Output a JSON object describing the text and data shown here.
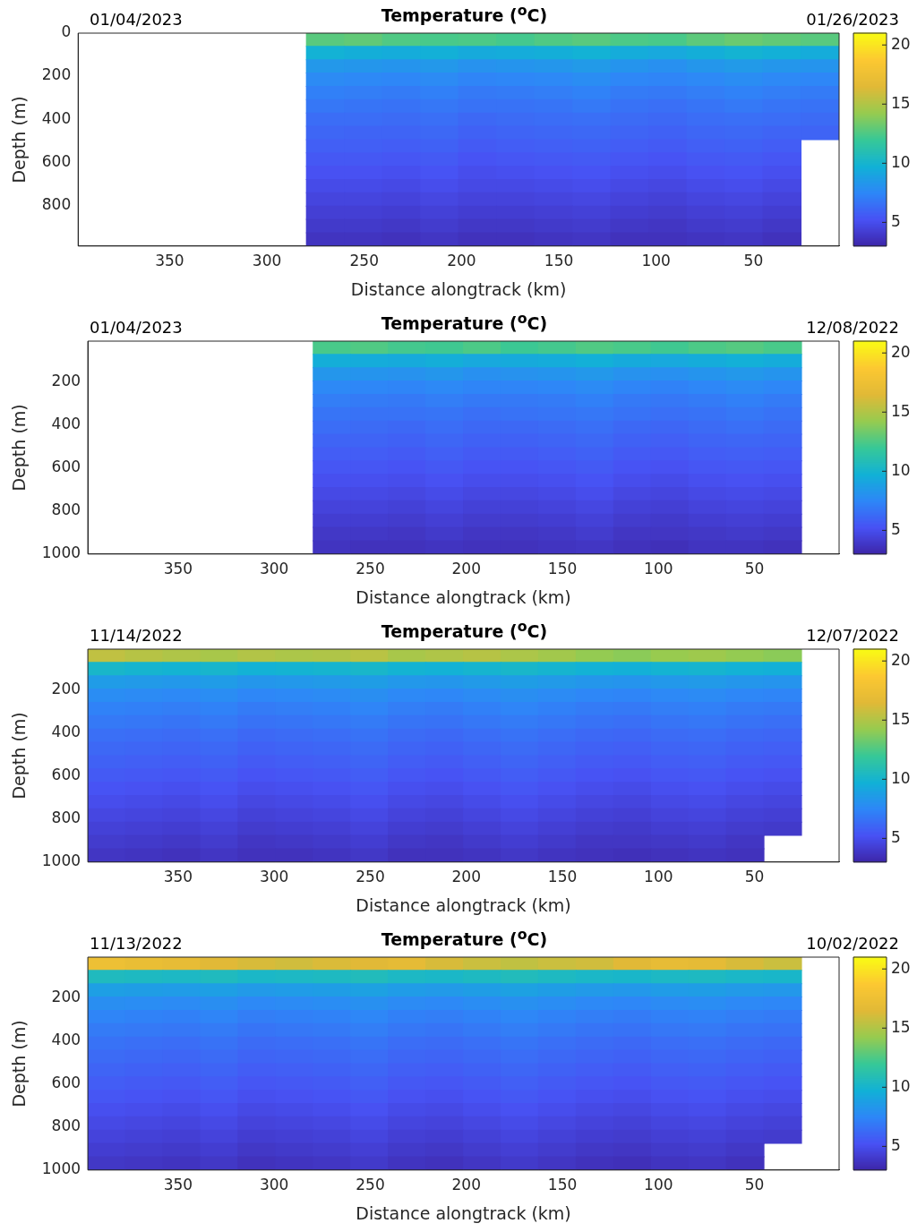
{
  "chart_data": [
    {
      "type": "heatmap",
      "title": "Temperature ($^{o}$C)",
      "xlabel": "Distance alongtrack (km)",
      "ylabel": "Depth (m)",
      "annotations": [
        "01/04/2023",
        "01/26/2023"
      ],
      "xlim": [
        397,
        6
      ],
      "xticks": [
        350,
        300,
        250,
        200,
        150,
        100,
        50
      ],
      "ylim": [
        990,
        0
      ],
      "yticks": [
        0,
        200,
        400,
        600,
        800
      ],
      "clim": [
        3,
        21
      ],
      "cticks": [
        5,
        10,
        15,
        20
      ],
      "cells": [
        [
          null,
          null,
          null,
          null,
          null,
          null,
          12.8,
          13.0,
          12.6,
          12.4,
          12.5,
          12.3,
          12.6,
          12.8,
          12.5,
          12.4,
          12.9,
          13.2,
          13.0,
          12.8
        ],
        [
          null,
          null,
          null,
          null,
          null,
          null,
          9.8,
          9.6,
          9.5,
          9.7,
          9.4,
          9.5,
          9.6,
          9.8,
          9.5,
          9.3,
          9.6,
          9.9,
          9.7,
          9.5
        ],
        [
          null,
          null,
          null,
          null,
          null,
          null,
          8.4,
          8.3,
          8.2,
          8.4,
          8.1,
          8.2,
          8.3,
          8.5,
          8.2,
          8.0,
          8.3,
          8.5,
          8.3,
          8.2
        ],
        [
          null,
          null,
          null,
          null,
          null,
          null,
          7.7,
          7.6,
          7.5,
          7.7,
          7.4,
          7.5,
          7.6,
          7.8,
          7.5,
          7.4,
          7.6,
          7.8,
          7.6,
          7.5
        ],
        [
          null,
          null,
          null,
          null,
          null,
          null,
          7.2,
          7.1,
          7.0,
          7.2,
          6.9,
          7.0,
          7.1,
          7.3,
          7.0,
          6.9,
          7.1,
          7.3,
          7.1,
          7.0
        ],
        [
          null,
          null,
          null,
          null,
          null,
          null,
          6.8,
          6.7,
          6.6,
          6.8,
          6.6,
          6.6,
          6.7,
          6.9,
          6.6,
          6.5,
          6.7,
          6.9,
          6.7,
          6.6
        ],
        [
          null,
          null,
          null,
          null,
          null,
          null,
          6.4,
          6.4,
          6.3,
          6.5,
          6.2,
          6.3,
          6.4,
          6.5,
          6.3,
          6.2,
          6.4,
          6.5,
          6.4,
          6.3
        ],
        [
          null,
          null,
          null,
          null,
          null,
          null,
          6.1,
          6.0,
          6.0,
          6.2,
          5.9,
          6.0,
          6.1,
          6.2,
          6.0,
          5.9,
          6.1,
          6.2,
          6.0,
          6.0
        ],
        [
          null,
          null,
          null,
          null,
          null,
          null,
          5.8,
          5.8,
          5.7,
          5.9,
          5.6,
          5.7,
          5.8,
          5.9,
          5.7,
          5.6,
          5.8,
          5.9,
          5.7,
          null
        ],
        [
          null,
          null,
          null,
          null,
          null,
          null,
          5.5,
          5.5,
          5.4,
          5.6,
          5.3,
          5.4,
          5.5,
          5.6,
          5.4,
          5.3,
          5.5,
          5.6,
          5.4,
          null
        ],
        [
          null,
          null,
          null,
          null,
          null,
          null,
          5.2,
          5.2,
          5.1,
          5.3,
          5.0,
          5.1,
          5.2,
          5.3,
          5.1,
          5.0,
          5.2,
          5.3,
          5.1,
          null
        ],
        [
          null,
          null,
          null,
          null,
          null,
          null,
          4.9,
          4.9,
          4.8,
          5.0,
          4.8,
          4.8,
          4.9,
          5.0,
          4.8,
          4.7,
          4.9,
          5.0,
          4.8,
          null
        ],
        [
          null,
          null,
          null,
          null,
          null,
          null,
          4.6,
          4.6,
          4.5,
          4.7,
          4.5,
          4.5,
          4.6,
          4.7,
          4.5,
          4.4,
          4.6,
          4.7,
          4.5,
          null
        ],
        [
          null,
          null,
          null,
          null,
          null,
          null,
          4.3,
          4.3,
          4.2,
          4.4,
          4.2,
          4.2,
          4.3,
          4.4,
          4.2,
          4.1,
          4.3,
          4.4,
          4.2,
          null
        ],
        [
          null,
          null,
          null,
          null,
          null,
          null,
          4.0,
          4.0,
          3.9,
          4.1,
          3.9,
          3.9,
          4.0,
          4.1,
          3.9,
          3.8,
          4.0,
          4.1,
          3.9,
          null
        ],
        [
          null,
          null,
          null,
          null,
          null,
          null,
          3.7,
          3.7,
          3.6,
          3.8,
          3.6,
          3.6,
          3.7,
          3.8,
          3.6,
          3.6,
          3.7,
          3.8,
          3.6,
          null
        ]
      ]
    },
    {
      "type": "heatmap",
      "title": "Temperature ($^{o}$C)",
      "xlabel": "Distance alongtrack (km)",
      "ylabel": "Depth (m)",
      "annotations": [
        "01/04/2023",
        "12/08/2022"
      ],
      "xlim": [
        397,
        6
      ],
      "xticks": [
        350,
        300,
        250,
        200,
        150,
        100,
        50
      ],
      "ylim": [
        1000,
        10
      ],
      "yticks": [
        200,
        400,
        600,
        800,
        1000
      ],
      "clim": [
        3,
        21
      ],
      "cticks": [
        5,
        10,
        15,
        20
      ],
      "cells": [
        [
          null,
          null,
          null,
          null,
          null,
          null,
          12.4,
          12.6,
          12.3,
          12.2,
          12.5,
          12.1,
          12.3,
          12.6,
          12.4,
          12.2,
          12.5,
          12.7,
          12.4,
          null
        ],
        [
          null,
          null,
          null,
          null,
          null,
          null,
          9.6,
          9.5,
          9.4,
          9.6,
          9.3,
          9.4,
          9.5,
          9.7,
          9.4,
          9.3,
          9.5,
          9.7,
          9.5,
          null
        ],
        [
          null,
          null,
          null,
          null,
          null,
          null,
          8.3,
          8.2,
          8.1,
          8.3,
          8.0,
          8.1,
          8.2,
          8.4,
          8.1,
          8.0,
          8.2,
          8.4,
          8.2,
          null
        ],
        [
          null,
          null,
          null,
          null,
          null,
          null,
          7.6,
          7.5,
          7.4,
          7.6,
          7.4,
          7.4,
          7.5,
          7.7,
          7.4,
          7.3,
          7.5,
          7.7,
          7.5,
          null
        ],
        [
          null,
          null,
          null,
          null,
          null,
          null,
          7.1,
          7.0,
          6.9,
          7.1,
          6.9,
          6.9,
          7.0,
          7.2,
          6.9,
          6.8,
          7.0,
          7.2,
          7.0,
          null
        ],
        [
          null,
          null,
          null,
          null,
          null,
          null,
          6.7,
          6.6,
          6.6,
          6.7,
          6.5,
          6.6,
          6.7,
          6.8,
          6.6,
          6.5,
          6.6,
          6.8,
          6.6,
          null
        ],
        [
          null,
          null,
          null,
          null,
          null,
          null,
          6.4,
          6.3,
          6.2,
          6.4,
          6.2,
          6.2,
          6.3,
          6.5,
          6.2,
          6.1,
          6.3,
          6.5,
          6.3,
          null
        ],
        [
          null,
          null,
          null,
          null,
          null,
          null,
          6.0,
          6.0,
          5.9,
          6.1,
          5.9,
          5.9,
          6.0,
          6.2,
          5.9,
          5.8,
          6.0,
          6.1,
          6.0,
          null
        ],
        [
          null,
          null,
          null,
          null,
          null,
          null,
          5.7,
          5.7,
          5.6,
          5.8,
          5.6,
          5.6,
          5.7,
          5.9,
          5.6,
          5.5,
          5.7,
          5.8,
          5.7,
          null
        ],
        [
          null,
          null,
          null,
          null,
          null,
          null,
          5.4,
          5.4,
          5.3,
          5.5,
          5.3,
          5.3,
          5.4,
          5.6,
          5.3,
          5.2,
          5.4,
          5.5,
          5.4,
          null
        ],
        [
          null,
          null,
          null,
          null,
          null,
          null,
          5.1,
          5.1,
          5.0,
          5.2,
          5.0,
          5.0,
          5.1,
          5.3,
          5.0,
          4.9,
          5.1,
          5.2,
          5.1,
          null
        ],
        [
          null,
          null,
          null,
          null,
          null,
          null,
          4.8,
          4.8,
          4.7,
          4.9,
          4.7,
          4.7,
          4.8,
          5.0,
          4.7,
          4.6,
          4.8,
          4.9,
          4.8,
          null
        ],
        [
          null,
          null,
          null,
          null,
          null,
          null,
          4.5,
          4.5,
          4.4,
          4.6,
          4.4,
          4.4,
          4.5,
          4.7,
          4.4,
          4.3,
          4.5,
          4.6,
          4.5,
          null
        ],
        [
          null,
          null,
          null,
          null,
          null,
          null,
          4.2,
          4.2,
          4.1,
          4.3,
          4.1,
          4.1,
          4.2,
          4.4,
          4.1,
          4.0,
          4.2,
          4.3,
          4.2,
          null
        ],
        [
          null,
          null,
          null,
          null,
          null,
          null,
          3.9,
          3.9,
          3.8,
          4.0,
          3.8,
          3.8,
          3.9,
          4.1,
          3.8,
          3.8,
          3.9,
          4.0,
          3.9,
          null
        ],
        [
          null,
          null,
          null,
          null,
          null,
          null,
          3.7,
          3.6,
          3.6,
          3.7,
          3.6,
          3.6,
          3.7,
          3.8,
          3.6,
          3.5,
          3.7,
          3.7,
          3.6,
          null
        ]
      ]
    },
    {
      "type": "heatmap",
      "title": "Temperature ($^{o}$C)",
      "xlabel": "Distance alongtrack (km)",
      "ylabel": "Depth (m)",
      "annotations": [
        "11/14/2022",
        "12/07/2022"
      ],
      "xlim": [
        397,
        6
      ],
      "xticks": [
        350,
        300,
        250,
        200,
        150,
        100,
        50
      ],
      "ylim": [
        1000,
        10
      ],
      "yticks": [
        200,
        400,
        600,
        800,
        1000
      ],
      "clim": [
        3,
        21
      ],
      "cticks": [
        5,
        10,
        15,
        20
      ],
      "cells": [
        [
          15.5,
          15.2,
          15.0,
          14.8,
          15.1,
          14.9,
          15.0,
          15.3,
          14.8,
          15.0,
          15.2,
          14.9,
          14.6,
          14.2,
          14.0,
          14.3,
          14.5,
          14.2,
          14.0,
          null
        ],
        [
          10.2,
          10.0,
          9.9,
          10.1,
          9.8,
          9.9,
          10.0,
          10.2,
          9.9,
          9.8,
          10.0,
          10.2,
          10.0,
          9.8,
          9.7,
          9.9,
          10.0,
          9.8,
          9.7,
          null
        ],
        [
          8.6,
          8.5,
          8.4,
          8.6,
          8.3,
          8.4,
          8.5,
          8.7,
          8.4,
          8.3,
          8.5,
          8.7,
          8.5,
          8.3,
          8.2,
          8.4,
          8.5,
          8.3,
          8.2,
          null
        ],
        [
          7.8,
          7.7,
          7.6,
          7.8,
          7.5,
          7.6,
          7.7,
          7.9,
          7.6,
          7.5,
          7.7,
          7.9,
          7.7,
          7.5,
          7.4,
          7.6,
          7.7,
          7.5,
          7.4,
          null
        ],
        [
          7.3,
          7.2,
          7.1,
          7.3,
          7.0,
          7.1,
          7.2,
          7.4,
          7.1,
          7.0,
          7.2,
          7.4,
          7.2,
          7.0,
          6.9,
          7.1,
          7.2,
          7.0,
          6.9,
          null
        ],
        [
          6.9,
          6.8,
          6.7,
          6.9,
          6.6,
          6.7,
          6.8,
          7.0,
          6.7,
          6.6,
          6.8,
          7.0,
          6.8,
          6.6,
          6.5,
          6.7,
          6.8,
          6.6,
          6.5,
          null
        ],
        [
          6.5,
          6.4,
          6.3,
          6.5,
          6.2,
          6.3,
          6.4,
          6.6,
          6.3,
          6.2,
          6.4,
          6.6,
          6.4,
          6.2,
          6.1,
          6.3,
          6.4,
          6.2,
          6.1,
          null
        ],
        [
          6.2,
          6.1,
          6.0,
          6.2,
          5.9,
          6.0,
          6.1,
          6.3,
          6.0,
          5.9,
          6.1,
          6.3,
          6.1,
          5.9,
          5.8,
          6.0,
          6.1,
          5.9,
          5.8,
          null
        ],
        [
          5.9,
          5.8,
          5.7,
          5.9,
          5.6,
          5.7,
          5.8,
          6.0,
          5.7,
          5.6,
          5.8,
          6.0,
          5.8,
          5.6,
          5.5,
          5.7,
          5.8,
          5.6,
          5.5,
          null
        ],
        [
          5.6,
          5.5,
          5.4,
          5.6,
          5.3,
          5.4,
          5.5,
          5.7,
          5.4,
          5.3,
          5.5,
          5.7,
          5.5,
          5.3,
          5.2,
          5.4,
          5.5,
          5.3,
          5.2,
          null
        ],
        [
          5.3,
          5.2,
          5.1,
          5.3,
          5.0,
          5.1,
          5.2,
          5.4,
          5.1,
          5.0,
          5.2,
          5.4,
          5.2,
          5.0,
          4.9,
          5.1,
          5.2,
          5.0,
          4.9,
          null
        ],
        [
          5.0,
          4.9,
          4.8,
          5.0,
          4.7,
          4.8,
          4.9,
          5.1,
          4.8,
          4.7,
          4.9,
          5.1,
          4.9,
          4.7,
          4.6,
          4.8,
          4.9,
          4.7,
          4.6,
          null
        ],
        [
          4.7,
          4.6,
          4.5,
          4.7,
          4.4,
          4.5,
          4.6,
          4.8,
          4.5,
          4.4,
          4.6,
          4.8,
          4.6,
          4.4,
          4.3,
          4.5,
          4.6,
          4.4,
          4.3,
          null
        ],
        [
          4.4,
          4.3,
          4.2,
          4.4,
          4.1,
          4.2,
          4.3,
          4.5,
          4.2,
          4.1,
          4.3,
          4.5,
          4.3,
          4.1,
          4.0,
          4.2,
          4.3,
          4.1,
          4.0,
          null
        ],
        [
          4.1,
          4.0,
          3.9,
          4.1,
          3.8,
          3.9,
          4.0,
          4.2,
          3.9,
          3.8,
          4.0,
          4.2,
          4.0,
          3.8,
          3.8,
          3.9,
          4.0,
          3.8,
          null,
          null
        ],
        [
          3.8,
          3.7,
          3.6,
          3.8,
          3.6,
          3.6,
          3.7,
          3.9,
          3.6,
          3.6,
          3.7,
          3.9,
          3.7,
          3.6,
          3.5,
          3.6,
          3.7,
          3.6,
          null,
          null
        ]
      ]
    },
    {
      "type": "heatmap",
      "title": "Temperature ($^{o}$C)",
      "xlabel": "Distance alongtrack (km)",
      "ylabel": "Depth (m)",
      "annotations": [
        "11/13/2022",
        "10/02/2022"
      ],
      "xlim": [
        397,
        6
      ],
      "xticks": [
        350,
        300,
        250,
        200,
        150,
        100,
        50
      ],
      "ylim": [
        1000,
        10
      ],
      "yticks": [
        200,
        400,
        600,
        800,
        1000
      ],
      "clim": [
        3,
        21
      ],
      "cticks": [
        5,
        10,
        15,
        20
      ],
      "cells": [
        [
          17.5,
          17.2,
          17.0,
          16.5,
          16.2,
          16.0,
          16.3,
          16.5,
          16.8,
          16.2,
          15.8,
          15.5,
          15.8,
          16.0,
          16.5,
          17.0,
          16.8,
          16.2,
          15.8,
          null
        ],
        [
          10.6,
          10.5,
          10.4,
          10.6,
          10.3,
          10.4,
          10.5,
          10.7,
          10.4,
          10.3,
          10.5,
          10.7,
          10.5,
          10.3,
          10.2,
          10.4,
          10.5,
          10.3,
          10.2,
          null
        ],
        [
          8.8,
          8.7,
          8.6,
          8.8,
          8.5,
          8.6,
          8.7,
          8.9,
          8.6,
          8.5,
          8.7,
          8.9,
          8.7,
          8.5,
          8.4,
          8.6,
          8.7,
          8.5,
          8.4,
          null
        ],
        [
          7.9,
          7.8,
          7.7,
          7.9,
          7.6,
          7.7,
          7.8,
          8.0,
          7.7,
          7.6,
          7.8,
          8.0,
          7.8,
          7.6,
          7.5,
          7.7,
          7.8,
          7.6,
          7.5,
          null
        ],
        [
          7.4,
          7.3,
          7.2,
          7.4,
          7.1,
          7.2,
          7.3,
          7.5,
          7.2,
          7.1,
          7.3,
          7.5,
          7.3,
          7.1,
          7.0,
          7.2,
          7.3,
          7.1,
          7.0,
          null
        ],
        [
          7.0,
          6.9,
          6.8,
          7.0,
          6.7,
          6.8,
          6.9,
          7.1,
          6.8,
          6.7,
          6.9,
          7.1,
          6.9,
          6.7,
          6.6,
          6.8,
          6.9,
          6.7,
          6.6,
          null
        ],
        [
          6.6,
          6.5,
          6.4,
          6.6,
          6.3,
          6.4,
          6.5,
          6.7,
          6.4,
          6.3,
          6.5,
          6.7,
          6.5,
          6.3,
          6.2,
          6.4,
          6.5,
          6.3,
          6.2,
          null
        ],
        [
          6.3,
          6.2,
          6.1,
          6.3,
          6.0,
          6.1,
          6.2,
          6.4,
          6.1,
          6.0,
          6.2,
          6.4,
          6.2,
          6.0,
          5.9,
          6.1,
          6.2,
          6.0,
          5.9,
          null
        ],
        [
          6.0,
          5.9,
          5.8,
          6.0,
          5.7,
          5.8,
          5.9,
          6.1,
          5.8,
          5.7,
          5.9,
          6.1,
          5.9,
          5.7,
          5.6,
          5.8,
          5.9,
          5.7,
          5.6,
          null
        ],
        [
          5.7,
          5.6,
          5.5,
          5.7,
          5.4,
          5.5,
          5.6,
          5.8,
          5.5,
          5.4,
          5.6,
          5.8,
          5.6,
          5.4,
          5.3,
          5.5,
          5.6,
          5.4,
          5.3,
          null
        ],
        [
          5.4,
          5.3,
          5.2,
          5.4,
          5.1,
          5.2,
          5.3,
          5.5,
          5.2,
          5.1,
          5.3,
          5.5,
          5.3,
          5.1,
          5.0,
          5.2,
          5.3,
          5.1,
          5.0,
          null
        ],
        [
          5.1,
          5.0,
          4.9,
          5.1,
          4.8,
          4.9,
          5.0,
          5.2,
          4.9,
          4.8,
          5.0,
          5.2,
          5.0,
          4.8,
          4.7,
          4.9,
          5.0,
          4.8,
          4.7,
          null
        ],
        [
          4.8,
          4.7,
          4.6,
          4.8,
          4.5,
          4.6,
          4.7,
          4.9,
          4.6,
          4.5,
          4.7,
          4.9,
          4.7,
          4.5,
          4.4,
          4.6,
          4.7,
          4.5,
          4.4,
          null
        ],
        [
          4.5,
          4.4,
          4.3,
          4.5,
          4.2,
          4.3,
          4.4,
          4.6,
          4.3,
          4.2,
          4.4,
          4.6,
          4.4,
          4.2,
          4.1,
          4.3,
          4.4,
          4.2,
          4.1,
          null
        ],
        [
          4.2,
          4.1,
          4.0,
          4.2,
          3.9,
          4.0,
          4.1,
          4.3,
          4.0,
          3.9,
          4.1,
          4.3,
          4.1,
          3.9,
          3.8,
          4.0,
          4.1,
          3.9,
          null,
          null
        ],
        [
          3.9,
          3.8,
          3.7,
          3.9,
          3.6,
          3.7,
          3.8,
          4.0,
          3.7,
          3.6,
          3.8,
          4.0,
          3.8,
          3.6,
          3.5,
          3.7,
          3.8,
          3.6,
          null,
          null
        ]
      ]
    }
  ]
}
